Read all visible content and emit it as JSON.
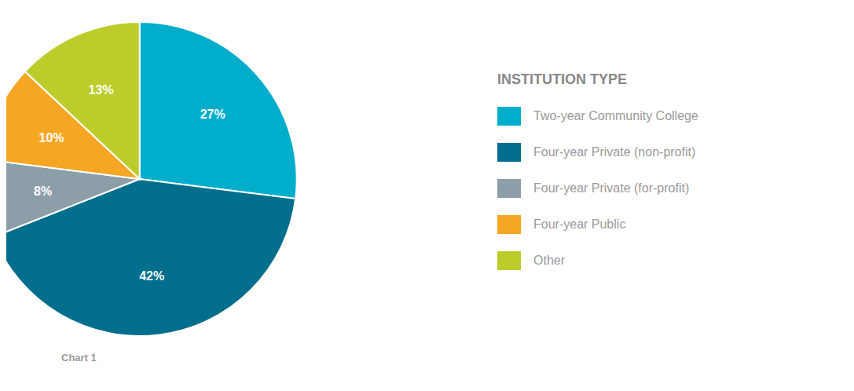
{
  "chart_data": {
    "type": "pie",
    "title": "INSTITUTION TYPE",
    "categories": [
      "Two-year Community College",
      "Four-year Private (non-profit)",
      "Four-year Private (for-profit)",
      "Four-year Public",
      "Other"
    ],
    "values": [
      27,
      42,
      8,
      10,
      13
    ],
    "value_labels": [
      "27%",
      "42%",
      "8%",
      "10%",
      "13%"
    ],
    "colors": [
      "#00AECC",
      "#006E8C",
      "#8C9EA8",
      "#F5A623",
      "#BCCD2B"
    ],
    "data_labels": true,
    "legend": "right",
    "annotations": [
      "Chart 1"
    ]
  }
}
